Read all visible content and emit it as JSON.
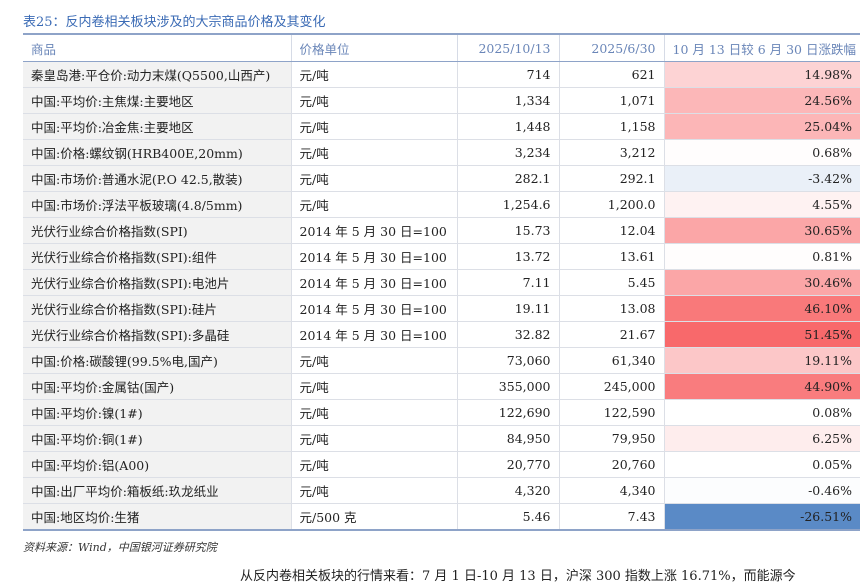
{
  "table_title": "表25：反内卷相关板块涉及的大宗商品价格及其变化",
  "table": {
    "header": [
      "商品",
      "价格单位",
      "2025/10/13",
      "2025/6/30",
      "10 月 13 日较 6 月 30 日涨跌幅"
    ],
    "rows": [
      [
        "秦皇岛港:平仓价:动力末煤(Q5500,山西产)",
        "元/吨",
        "714",
        "621",
        "14.98%"
      ],
      [
        "中国:平均价:主焦煤:主要地区",
        "元/吨",
        "1,334",
        "1,071",
        "24.56%"
      ],
      [
        "中国:平均价:冶金焦:主要地区",
        "元/吨",
        "1,448",
        "1,158",
        "25.04%"
      ],
      [
        "中国:价格:螺纹钢(HRB400E,20mm)",
        "元/吨",
        "3,234",
        "3,212",
        "0.68%"
      ],
      [
        "中国:市场价:普通水泥(P.O 42.5,散装)",
        "元/吨",
        "282.1",
        "292.1",
        "-3.42%"
      ],
      [
        "中国:市场价:浮法平板玻璃(4.8/5mm)",
        "元/吨",
        "1,254.6",
        "1,200.0",
        "4.55%"
      ],
      [
        "光伏行业综合价格指数(SPI)",
        "2014 年 5 月 30 日=100",
        "15.73",
        "12.04",
        "30.65%"
      ],
      [
        "光伏行业综合价格指数(SPI):组件",
        "2014 年 5 月 30 日=100",
        "13.72",
        "13.61",
        "0.81%"
      ],
      [
        "光伏行业综合价格指数(SPI):电池片",
        "2014 年 5 月 30 日=100",
        "7.11",
        "5.45",
        "30.46%"
      ],
      [
        "光伏行业综合价格指数(SPI):硅片",
        "2014 年 5 月 30 日=100",
        "19.11",
        "13.08",
        "46.10%"
      ],
      [
        "光伏行业综合价格指数(SPI):多晶硅",
        "2014 年 5 月 30 日=100",
        "32.82",
        "21.67",
        "51.45%"
      ],
      [
        "中国:价格:碳酸锂(99.5%电,国产)",
        "元/吨",
        "73,060",
        "61,340",
        "19.11%"
      ],
      [
        "中国:平均价:金属钴(国产)",
        "元/吨",
        "355,000",
        "245,000",
        "44.90%"
      ],
      [
        "中国:平均价:镍(1#)",
        "元/吨",
        "122,690",
        "122,590",
        "0.08%"
      ],
      [
        "中国:平均价:铜(1#)",
        "元/吨",
        "84,950",
        "79,950",
        "6.25%"
      ],
      [
        "中国:平均价:铝(A00)",
        "元/吨",
        "20,770",
        "20,760",
        "0.05%"
      ],
      [
        "中国:出厂平均价:箱板纸:玖龙纸业",
        "元/吨",
        "4,320",
        "4,340",
        "-0.46%"
      ],
      [
        "中国:地区均价:生猪",
        "元/500 克",
        "5.46",
        "7.43",
        "-26.51%"
      ]
    ]
  },
  "source": "资料来源：Wind，中国银河证券研究院",
  "body_text": "从反内卷相关板块的行情来看：7 月 1 日-10 月 13 日，沪深 300 指数上涨 16.71%，而能源今"
}
